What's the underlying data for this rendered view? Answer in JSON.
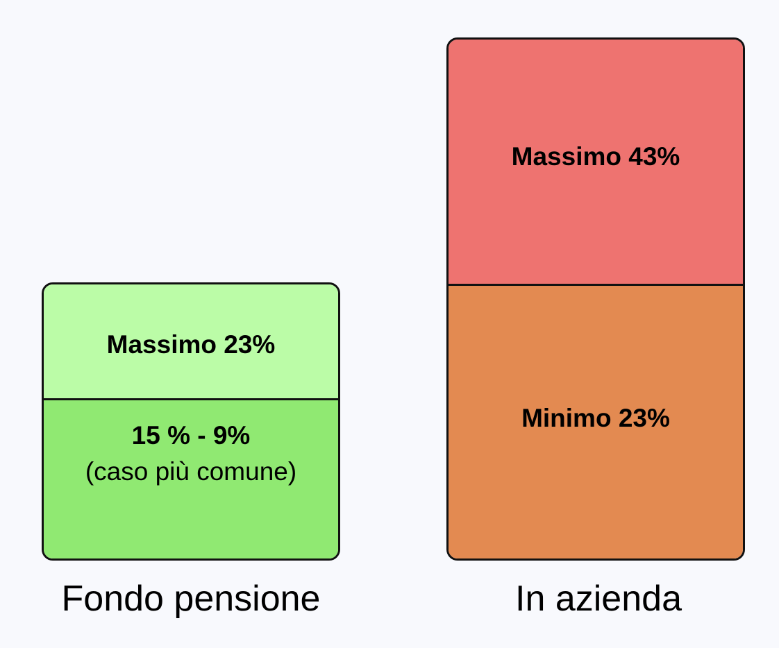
{
  "colors": {
    "background": "#f8f9fd",
    "fondo_top": "#bbfca7",
    "fondo_bottom": "#90e972",
    "azienda_top": "#ee7370",
    "azienda_bottom": "#e38a51"
  },
  "fondo": {
    "label": "Fondo pensione",
    "top": "Massimo 23%",
    "bottom_main": "15 % - 9%",
    "bottom_note": "(caso più comune)"
  },
  "azienda": {
    "label": "In azienda",
    "top": "Massimo 43%",
    "bottom": "Minimo 23%"
  }
}
